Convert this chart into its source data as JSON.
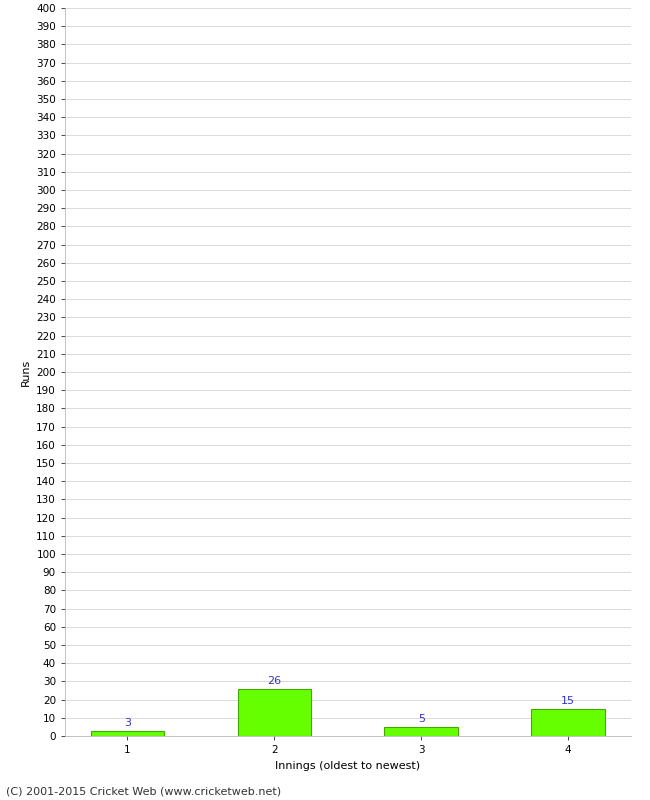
{
  "categories": [
    "1",
    "2",
    "3",
    "4"
  ],
  "values": [
    3,
    26,
    5,
    15
  ],
  "bar_color": "#66ff00",
  "bar_edgecolor": "#44aa00",
  "xlabel": "Innings (oldest to newest)",
  "ylabel": "Runs",
  "ylim": [
    0,
    400
  ],
  "ytick_step": 10,
  "annotation_color": "#3333cc",
  "annotation_fontsize": 8,
  "xlabel_fontsize": 8,
  "ylabel_fontsize": 8,
  "tick_fontsize": 7.5,
  "background_color": "#ffffff",
  "grid_color": "#cccccc",
  "footer_text": "(C) 2001-2015 Cricket Web (www.cricketweb.net)",
  "footer_fontsize": 8
}
